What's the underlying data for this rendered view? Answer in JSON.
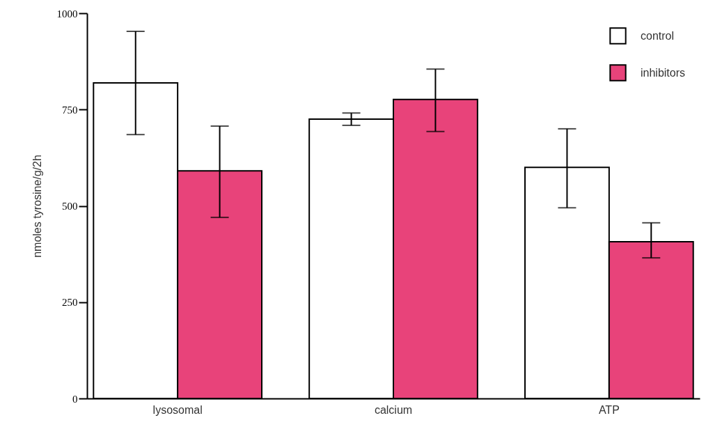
{
  "chart_data": {
    "type": "bar",
    "ylabel": "nmoles tyrosine/g/2h",
    "categories": [
      "lysosomal",
      "calcium",
      "ATP"
    ],
    "series": [
      {
        "name": "control",
        "color": "#ffffff",
        "values": [
          819,
          725,
          600
        ],
        "errors": [
          [
            685,
            953
          ],
          [
            709,
            741
          ],
          [
            495,
            700
          ]
        ]
      },
      {
        "name": "inhibitors",
        "color": "#e8437a",
        "values": [
          591,
          776,
          407
        ],
        "errors": [
          [
            470,
            707
          ],
          [
            693,
            855
          ],
          [
            365,
            456
          ]
        ]
      }
    ],
    "ylim": [
      0,
      1000
    ],
    "yticks": [
      0,
      250,
      500,
      750,
      1000
    ],
    "grid": false,
    "legend": "top right"
  }
}
